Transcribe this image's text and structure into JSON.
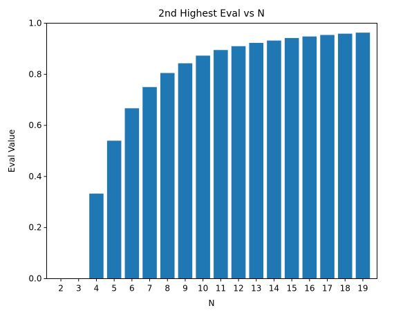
{
  "chart_data": {
    "type": "bar",
    "title": "2nd Highest Eval vs N",
    "xlabel": "N",
    "ylabel": "Eval Value",
    "categories": [
      "2",
      "3",
      "4",
      "5",
      "6",
      "7",
      "8",
      "9",
      "10",
      "11",
      "12",
      "13",
      "14",
      "15",
      "16",
      "17",
      "18",
      "19"
    ],
    "values": [
      0,
      0,
      0.333,
      0.54,
      0.667,
      0.75,
      0.805,
      0.843,
      0.873,
      0.895,
      0.91,
      0.923,
      0.932,
      0.942,
      0.948,
      0.954,
      0.959,
      0.963
    ],
    "ylim": [
      0,
      1
    ],
    "yticks": [
      "0.0",
      "0.2",
      "0.4",
      "0.6",
      "0.8",
      "1.0"
    ],
    "grid": false,
    "bar_color": "#1f77b4"
  }
}
